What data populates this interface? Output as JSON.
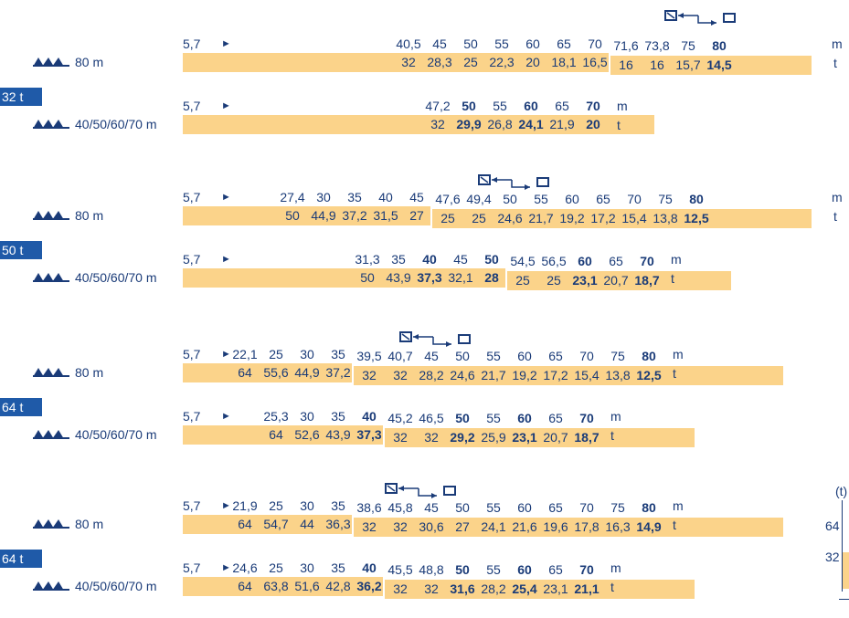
{
  "units": {
    "m": "m",
    "t": "t"
  },
  "start_radius": "5,7",
  "start_marker": "►",
  "blocks": [
    {
      "badge": "32 t",
      "rows": [
        {
          "boom": "80 m",
          "headers": [
            "40,5",
            "45",
            "50",
            "55",
            "60",
            "65",
            "70",
            "71,6",
            "73,8",
            "75",
            "80"
          ],
          "bold_headers": [
            10
          ],
          "values": [
            "32",
            "28,3",
            "25",
            "22,3",
            "20",
            "18,1",
            "16,5",
            "16",
            "16",
            "15,7",
            "14,5"
          ],
          "bold_values": [
            10
          ]
        },
        {
          "boom": "40/50/60/70 m",
          "headers": [
            "47,2",
            "50",
            "55",
            "60",
            "65",
            "70"
          ],
          "bold_headers": [
            1,
            3,
            5
          ],
          "values": [
            "32",
            "29,9",
            "26,8",
            "24,1",
            "21,9",
            "20"
          ],
          "bold_values": [
            1,
            3,
            5
          ]
        }
      ]
    },
    {
      "badge": "50 t",
      "rows": [
        {
          "boom": "80 m",
          "headers": [
            "27,4",
            "30",
            "35",
            "40",
            "45",
            "47,6",
            "49,4",
            "50",
            "55",
            "60",
            "65",
            "70",
            "75",
            "80"
          ],
          "bold_headers": [
            13
          ],
          "values": [
            "50",
            "44,9",
            "37,2",
            "31,5",
            "27",
            "25",
            "25",
            "24,6",
            "21,7",
            "19,2",
            "17,2",
            "15,4",
            "13,8",
            "12,5"
          ],
          "bold_values": [
            13
          ]
        },
        {
          "boom": "40/50/60/70 m",
          "headers": [
            "31,3",
            "35",
            "40",
            "45",
            "50",
            "54,5",
            "56,5",
            "60",
            "65",
            "70"
          ],
          "bold_headers": [
            2,
            4,
            7,
            9
          ],
          "values": [
            "50",
            "43,9",
            "37,3",
            "32,1",
            "28",
            "25",
            "25",
            "23,1",
            "20,7",
            "18,7"
          ],
          "bold_values": [
            2,
            4,
            7,
            9
          ]
        }
      ]
    },
    {
      "badge": "64 t",
      "rows": [
        {
          "boom": "80 m",
          "headers": [
            "22,1",
            "25",
            "30",
            "35",
            "39,5",
            "40,7",
            "45",
            "50",
            "55",
            "60",
            "65",
            "70",
            "75",
            "80"
          ],
          "bold_headers": [
            13
          ],
          "values": [
            "64",
            "55,6",
            "44,9",
            "37,2",
            "32",
            "32",
            "28,2",
            "24,6",
            "21,7",
            "19,2",
            "17,2",
            "15,4",
            "13,8",
            "12,5"
          ],
          "bold_values": [
            13
          ]
        },
        {
          "boom": "40/50/60/70 m",
          "headers": [
            "25,3",
            "30",
            "35",
            "40",
            "45,2",
            "46,5",
            "50",
            "55",
            "60",
            "65",
            "70"
          ],
          "bold_headers": [
            3,
            6,
            8,
            10
          ],
          "values": [
            "64",
            "52,6",
            "43,9",
            "37,3",
            "32",
            "32",
            "29,2",
            "25,9",
            "23,1",
            "20,7",
            "18,7"
          ],
          "bold_values": [
            3,
            6,
            8,
            10
          ]
        }
      ]
    },
    {
      "badge": "64 t",
      "rows": [
        {
          "boom": "80 m",
          "headers": [
            "21,9",
            "25",
            "30",
            "35",
            "38,6",
            "45,8",
            "45",
            "50",
            "55",
            "60",
            "65",
            "70",
            "75",
            "80"
          ],
          "bold_headers": [
            13
          ],
          "values": [
            "64",
            "54,7",
            "44",
            "36,3",
            "32",
            "32",
            "30,6",
            "27",
            "24,1",
            "21,6",
            "19,6",
            "17,8",
            "16,3",
            "14,9"
          ],
          "bold_values": [
            13
          ]
        },
        {
          "boom": "40/50/60/70 m",
          "headers": [
            "24,6",
            "25",
            "30",
            "35",
            "40",
            "45,5",
            "48,8",
            "50",
            "55",
            "60",
            "65",
            "70"
          ],
          "bold_headers": [
            4,
            7,
            9,
            11
          ],
          "values": [
            "64",
            "63,8",
            "51,6",
            "42,8",
            "36,2",
            "32",
            "32",
            "31,6",
            "28,2",
            "25,4",
            "23,1",
            "21,1"
          ],
          "bold_values": [
            4,
            7,
            9,
            11
          ]
        }
      ]
    }
  ],
  "side_axis": {
    "unit": "(t)",
    "ticks": [
      "64",
      "32"
    ]
  },
  "colors": {
    "bar": "#fbd38a",
    "text": "#1a3b78",
    "badge": "#1f5aa8"
  }
}
